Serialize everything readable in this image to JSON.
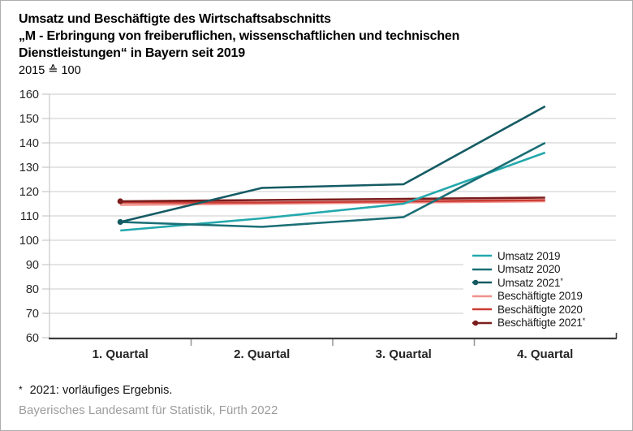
{
  "header": {
    "title_lines": [
      "Umsatz und Beschäftigte des Wirtschaftsabschnitts",
      "„M - Erbringung von freiberuflichen, wissenschaftlichen und technischen",
      "Dienstleistungen“ in Bayern seit 2019"
    ],
    "subtitle": "2015 ≙ 100"
  },
  "chart_data": {
    "type": "line",
    "categories": [
      "1. Quartal",
      "2. Quartal",
      "3. Quartal",
      "4. Quartal"
    ],
    "series": [
      {
        "name": "Umsatz 2019",
        "values": [
          104,
          109,
          115,
          136
        ],
        "color": "#23a8ac",
        "marker": false
      },
      {
        "name": "Umsatz 2020",
        "values": [
          107.5,
          105.5,
          109.5,
          140
        ],
        "color": "#1a6f76",
        "marker": false
      },
      {
        "name": "Umsatz 2021*",
        "values": [
          107.5,
          121.5,
          123,
          155
        ],
        "color": "#155b63",
        "marker": true
      },
      {
        "name": "Beschäftigte 2019",
        "values": [
          114.5,
          115,
          115.5,
          116
        ],
        "color": "#f0908a",
        "marker": false
      },
      {
        "name": "Beschäftigte 2020",
        "values": [
          115.5,
          115.5,
          116,
          116.5
        ],
        "color": "#c93b33",
        "marker": false
      },
      {
        "name": "Beschäftigte 2021*",
        "values": [
          116,
          116.5,
          117,
          117.5
        ],
        "color": "#7c1d1d",
        "marker": true
      }
    ],
    "ylim": [
      60,
      160
    ],
    "yticks": [
      60,
      70,
      80,
      90,
      100,
      110,
      120,
      130,
      140,
      150,
      160
    ],
    "grid": true,
    "legend_position": "right-inside",
    "colors": {
      "gridline": "#cbcbcb",
      "axis_line": "#3d3d3d",
      "xtick": "#999999",
      "tick_label": "#262626"
    }
  },
  "footnote": {
    "marker": "*",
    "text": "2021: vorläufiges Ergebnis."
  },
  "source": "Bayerisches Landesamt für Statistik, Fürth 2022"
}
